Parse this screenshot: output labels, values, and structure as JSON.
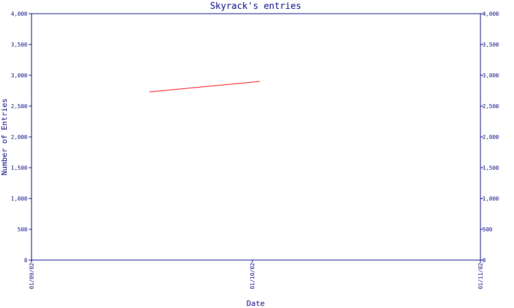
{
  "chart_data": {
    "type": "line",
    "title": "Skyrack's entries",
    "xlabel": "Date",
    "ylabel": "Number of Entries",
    "x_ticks": [
      "01/09/02",
      "01/10/02",
      "01/11/02"
    ],
    "xlim": [
      "01/09/02",
      "01/11/02"
    ],
    "ylim": [
      0,
      4000
    ],
    "y_ticks": [
      0,
      500,
      1000,
      1500,
      2000,
      2500,
      3000,
      3500,
      4000
    ],
    "y_tick_labels": [
      "0",
      "500",
      "1,000",
      "1,500",
      "2,000",
      "2,500",
      "3,000",
      "3,500",
      "4,000"
    ],
    "y_axis_right": true,
    "grid": false,
    "series": [
      {
        "color": "#ff0000",
        "points": [
          {
            "x": "2002-09-17",
            "y": 2730
          },
          {
            "x": "2002-10-02",
            "y": 2900
          }
        ]
      }
    ]
  },
  "colors": {
    "axis": "#000080",
    "line": "#ff0000",
    "background": "#ffffff"
  }
}
